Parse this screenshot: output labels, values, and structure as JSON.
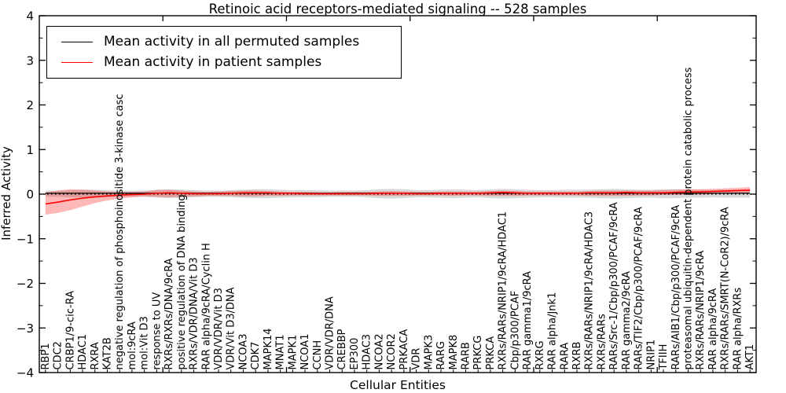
{
  "title": "Retinoic acid receptors-mediated signaling -- 528 samples",
  "xlabel": "Cellular Entities",
  "ylabel": "Inferred Activity",
  "chart_data": {
    "type": "line",
    "title": "Retinoic acid receptors-mediated signaling -- 528 samples",
    "xlabel": "Cellular Entities",
    "ylabel": "Inferred Activity",
    "ylim": [
      -4,
      4
    ],
    "grid": false,
    "legend_position": "upper left",
    "background": "#ffffff",
    "axis_color": "#000000",
    "y_ticks": [
      {
        "value": 4,
        "label": "4"
      },
      {
        "value": 3,
        "label": "3"
      },
      {
        "value": 2,
        "label": "2"
      },
      {
        "value": 1,
        "label": "1"
      },
      {
        "value": 0,
        "label": "0"
      },
      {
        "value": -1,
        "label": "−1"
      },
      {
        "value": -2,
        "label": "−2"
      },
      {
        "value": -3,
        "label": "−3"
      },
      {
        "value": -4,
        "label": "−4"
      }
    ],
    "y_minor_tick_values": [
      3.5,
      2.5,
      1.5,
      0.5,
      -0.5,
      -1.5,
      -2.5,
      -3.5
    ],
    "x_major_tick_positions": [
      10,
      20,
      30,
      40,
      50
    ],
    "zero_line": {
      "value": 0,
      "style": "dotted",
      "color": "#000000"
    },
    "categories": [
      "RBP1",
      "CDC2",
      "CRBP1/9-cic-RA",
      "HDAC1",
      "RXRA",
      "KAT2B",
      "negative regulation of phosphoinositide 3-kinase casc",
      "mol:9cRA",
      "mol:Vit D3",
      "response to UV",
      "RXRs/RXRs/DNA/9cRA",
      "positive regulation of DNA binding",
      "RXRs/VDR/DNA/Vit D3",
      "RAR alpha/9cRA/Cyclin H",
      "VDR/VDR/Vit D3",
      "VDR/Vit D3/DNA",
      "NCOA3",
      "CDK7",
      "MAPK14",
      "MNAT1",
      "MAPK1",
      "NCOA1",
      "CCNH",
      "VDR/VDR/DNA",
      "CREBBP",
      "EP300",
      "HDAC3",
      "NCOA2",
      "NCOR2",
      "PRKACA",
      "VDR",
      "MAPK3",
      "RARG",
      "MAPK8",
      "RARB",
      "PRKCG",
      "PRKCA",
      "RXRs/RARs/NRIP1/9cRA/HDAC1",
      "Cbp/p300/PCAF",
      "RAR gamma1/9cRA",
      "RXRG",
      "RAR alpha/Jnk1",
      "RARA",
      "RXRB",
      "RXRs/RARs/NRIP1/9cRA/HDAC3",
      "RXRs/RARs",
      "RARs/Src-1/Cbp/p300/PCAF/9cRA",
      "RAR gamma2/9cRA",
      "RARs/TIF2/Cbp/p300/PCAF/9cRA",
      "NRIP1",
      "TFIIH",
      "RARs/AIB1/Cbp/p300/PCAF/9cRA",
      "proteasomal ubiquitin-dependent protein catabolic process",
      "RXRs/RARs/NRIP1/9cRA",
      "RAR alpha/9cRA",
      "RXRs/RARs/SMRT(N-CoR2)/9cRA",
      "RAR alpha/RXRs",
      "AKT1"
    ],
    "series": [
      {
        "name": "Mean activity in all permuted samples",
        "color": "#000000",
        "band_color": "rgba(130,130,130,0.30)",
        "values": [
          0.02,
          0.02,
          0.02,
          0.02,
          0.02,
          0.02,
          0.02,
          0.02,
          0.02,
          0.02,
          0.02,
          0.02,
          0.02,
          0.02,
          0.02,
          0.02,
          0.02,
          0.02,
          0.02,
          0.02,
          0.02,
          0.02,
          0.02,
          0.02,
          0.02,
          0.02,
          0.02,
          0.02,
          0.02,
          0.02,
          0.02,
          0.02,
          0.02,
          0.02,
          0.02,
          0.02,
          0.02,
          0.02,
          0.02,
          0.02,
          0.02,
          0.02,
          0.02,
          0.02,
          0.02,
          0.02,
          0.02,
          0.02,
          0.02,
          0.02,
          0.02,
          0.02,
          0.02,
          0.02,
          0.02,
          0.02,
          0.02,
          0.02
        ],
        "band_lo": [
          -0.06,
          -0.06,
          -0.07,
          -0.08,
          -0.08,
          -0.07,
          -0.06,
          -0.06,
          -0.06,
          -0.08,
          -0.09,
          -0.08,
          -0.07,
          -0.06,
          -0.06,
          -0.07,
          -0.08,
          -0.09,
          -0.09,
          -0.08,
          -0.07,
          -0.07,
          -0.07,
          -0.06,
          -0.06,
          -0.06,
          -0.07,
          -0.09,
          -0.1,
          -0.09,
          -0.07,
          -0.07,
          -0.08,
          -0.09,
          -0.08,
          -0.07,
          -0.09,
          -0.1,
          -0.09,
          -0.08,
          -0.07,
          -0.07,
          -0.08,
          -0.08,
          -0.08,
          -0.09,
          -0.1,
          -0.09,
          -0.08,
          -0.08,
          -0.09,
          -0.09,
          -0.08,
          -0.08,
          -0.07,
          -0.08,
          -0.08,
          -0.08
        ],
        "band_hi": [
          0.08,
          0.08,
          0.09,
          0.1,
          0.1,
          0.09,
          0.08,
          0.08,
          0.08,
          0.1,
          0.11,
          0.1,
          0.09,
          0.08,
          0.08,
          0.09,
          0.1,
          0.11,
          0.11,
          0.1,
          0.09,
          0.09,
          0.09,
          0.08,
          0.08,
          0.08,
          0.09,
          0.11,
          0.12,
          0.11,
          0.09,
          0.09,
          0.1,
          0.11,
          0.1,
          0.09,
          0.11,
          0.12,
          0.11,
          0.1,
          0.09,
          0.09,
          0.1,
          0.1,
          0.1,
          0.11,
          0.12,
          0.11,
          0.1,
          0.1,
          0.11,
          0.11,
          0.1,
          0.1,
          0.09,
          0.1,
          0.1,
          0.1
        ]
      },
      {
        "name": "Mean activity in patient samples",
        "color": "#ff0000",
        "band_color": "rgba(255,0,0,0.28)",
        "values": [
          -0.22,
          -0.18,
          -0.13,
          -0.09,
          -0.06,
          -0.04,
          -0.02,
          -0.01,
          0.0,
          0.02,
          0.03,
          0.02,
          0.01,
          0.01,
          0.01,
          0.02,
          0.03,
          0.03,
          0.03,
          0.02,
          0.02,
          0.01,
          0.01,
          0.01,
          0.01,
          0.01,
          0.01,
          0.02,
          0.02,
          0.02,
          0.01,
          0.01,
          0.02,
          0.02,
          0.02,
          0.02,
          0.03,
          0.04,
          0.03,
          0.02,
          0.02,
          0.02,
          0.02,
          0.02,
          0.03,
          0.03,
          0.03,
          0.04,
          0.03,
          0.03,
          0.03,
          0.04,
          0.05,
          0.05,
          0.06,
          0.07,
          0.08,
          0.09
        ],
        "band_lo": [
          -0.46,
          -0.42,
          -0.36,
          -0.28,
          -0.2,
          -0.14,
          -0.1,
          -0.07,
          -0.05,
          -0.06,
          -0.07,
          -0.06,
          -0.05,
          -0.04,
          -0.04,
          -0.04,
          -0.05,
          -0.05,
          -0.04,
          -0.04,
          -0.03,
          -0.03,
          -0.03,
          -0.03,
          -0.03,
          -0.03,
          -0.03,
          -0.04,
          -0.04,
          -0.04,
          -0.03,
          -0.03,
          -0.03,
          -0.04,
          -0.03,
          -0.03,
          -0.04,
          -0.04,
          -0.04,
          -0.03,
          -0.03,
          -0.03,
          -0.03,
          -0.03,
          -0.04,
          -0.04,
          -0.04,
          -0.04,
          -0.03,
          -0.03,
          -0.02,
          -0.02,
          -0.01,
          -0.01,
          0.0,
          0.01,
          0.02,
          0.03
        ],
        "band_hi": [
          0.04,
          0.08,
          0.11,
          0.1,
          0.08,
          0.06,
          0.05,
          0.05,
          0.06,
          0.09,
          0.1,
          0.08,
          0.06,
          0.05,
          0.06,
          0.07,
          0.08,
          0.08,
          0.07,
          0.06,
          0.05,
          0.05,
          0.04,
          0.04,
          0.05,
          0.05,
          0.05,
          0.06,
          0.07,
          0.06,
          0.05,
          0.05,
          0.06,
          0.06,
          0.06,
          0.06,
          0.07,
          0.08,
          0.07,
          0.06,
          0.06,
          0.06,
          0.06,
          0.06,
          0.07,
          0.08,
          0.08,
          0.08,
          0.08,
          0.08,
          0.09,
          0.1,
          0.11,
          0.11,
          0.12,
          0.13,
          0.14,
          0.16
        ]
      }
    ]
  }
}
